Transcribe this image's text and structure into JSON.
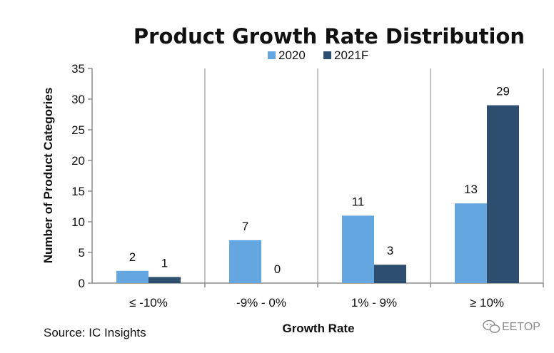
{
  "chart_data": {
    "type": "bar",
    "title": "Product Growth Rate Distribution",
    "xlabel": "Growth Rate",
    "ylabel": "Number of Product Categories",
    "categories": [
      "≤ -10%",
      "-9% - 0%",
      "1% - 9%",
      "≥ 10%"
    ],
    "series": [
      {
        "name": "2020",
        "values": [
          2,
          7,
          11,
          13
        ],
        "color": "#63a6e0"
      },
      {
        "name": "2021F",
        "values": [
          1,
          0,
          3,
          29
        ],
        "color": "#2d4e6f"
      }
    ],
    "ylim": [
      0,
      35
    ],
    "yticks": [
      0,
      5,
      10,
      15,
      20,
      25,
      30,
      35
    ],
    "grid": "vertical",
    "legend": "top-center",
    "data_labels": true
  },
  "source": "Source:  IC Insights",
  "watermark": {
    "icon": "wechat-icon",
    "text": "EETOP"
  },
  "colors": {
    "grid": "#b0b0b0",
    "axis": "#8c8c8c",
    "watermark": "#8a8a8a"
  }
}
